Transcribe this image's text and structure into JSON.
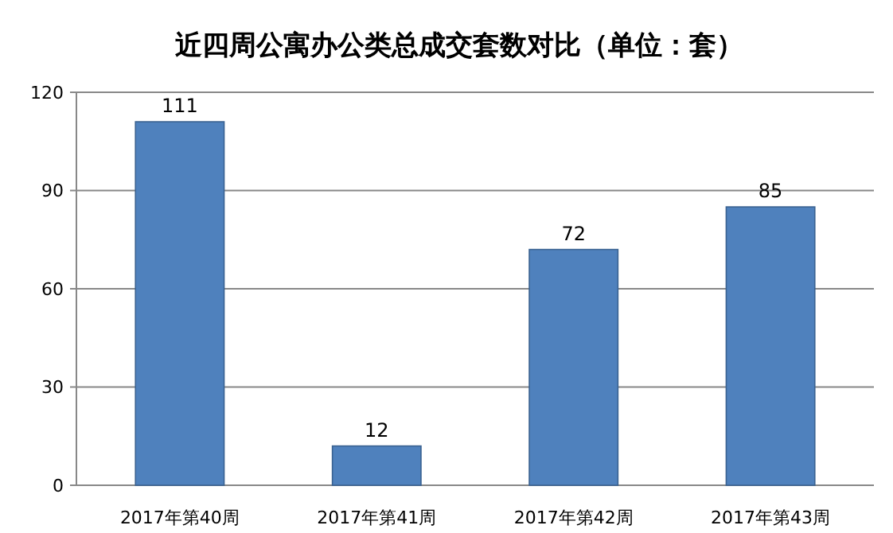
{
  "chart_data": {
    "type": "bar",
    "title": "近四周公寓办公类总成交套数对比（单位：套）",
    "categories": [
      "2017年第40周",
      "2017年第41周",
      "2017年第42周",
      "2017年第43周"
    ],
    "values": [
      111,
      12,
      72,
      85
    ],
    "color": "#4f81bd",
    "ylim": [
      0,
      120
    ],
    "yticks": [
      0,
      30,
      60,
      90,
      120
    ],
    "grid": true,
    "data_labels": true
  }
}
